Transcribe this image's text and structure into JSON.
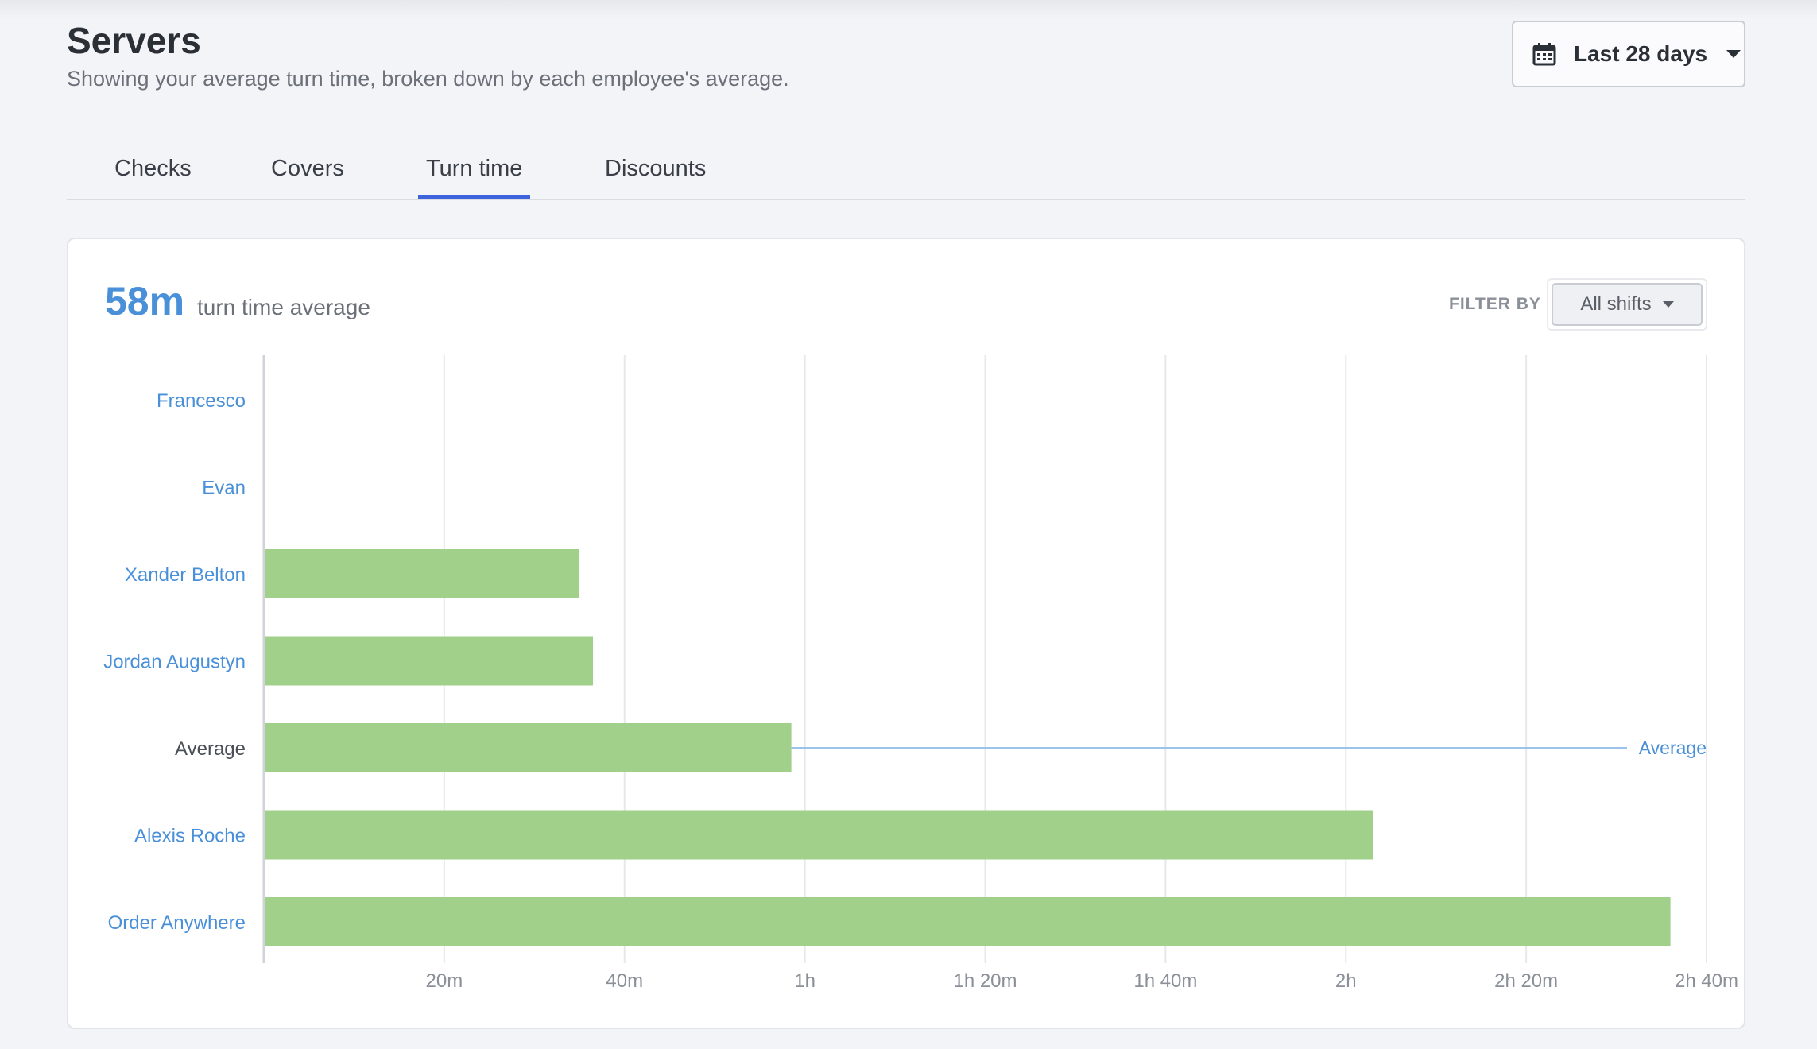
{
  "header": {
    "title": "Servers",
    "subtitle": "Showing your average turn time, broken down by each employee's average.",
    "date_range": "Last 28 days"
  },
  "tabs": [
    {
      "label": "Checks",
      "active": false
    },
    {
      "label": "Covers",
      "active": false
    },
    {
      "label": "Turn time",
      "active": true
    },
    {
      "label": "Discounts",
      "active": false
    }
  ],
  "summary": {
    "value": "58m",
    "label": "turn time average"
  },
  "filter": {
    "label": "FILTER BY",
    "selected": "All shifts"
  },
  "colors": {
    "accent": "#3d63dd",
    "link": "#4a90d9",
    "bar": "#a1d08b",
    "average_line": "#9cc3ea",
    "grid": "#e6e8ec"
  },
  "chart_data": {
    "type": "bar",
    "orientation": "horizontal",
    "categories": [
      "Francesco",
      "Evan",
      "Xander Belton",
      "Jordan Augustyn",
      "Average",
      "Alexis Roche",
      "Order Anywhere"
    ],
    "values_minutes": [
      0,
      0,
      35,
      36.5,
      58.5,
      123,
      156
    ],
    "x_ticks_minutes": [
      20,
      40,
      60,
      80,
      100,
      120,
      140,
      160
    ],
    "x_tick_labels": [
      "20m",
      "40m",
      "1h",
      "1h 20m",
      "1h 40m",
      "2h",
      "2h 20m",
      "2h 40m"
    ],
    "xlim": [
      0,
      160
    ],
    "reference_line": {
      "label": "Average",
      "row": "Average"
    },
    "grid": true
  }
}
